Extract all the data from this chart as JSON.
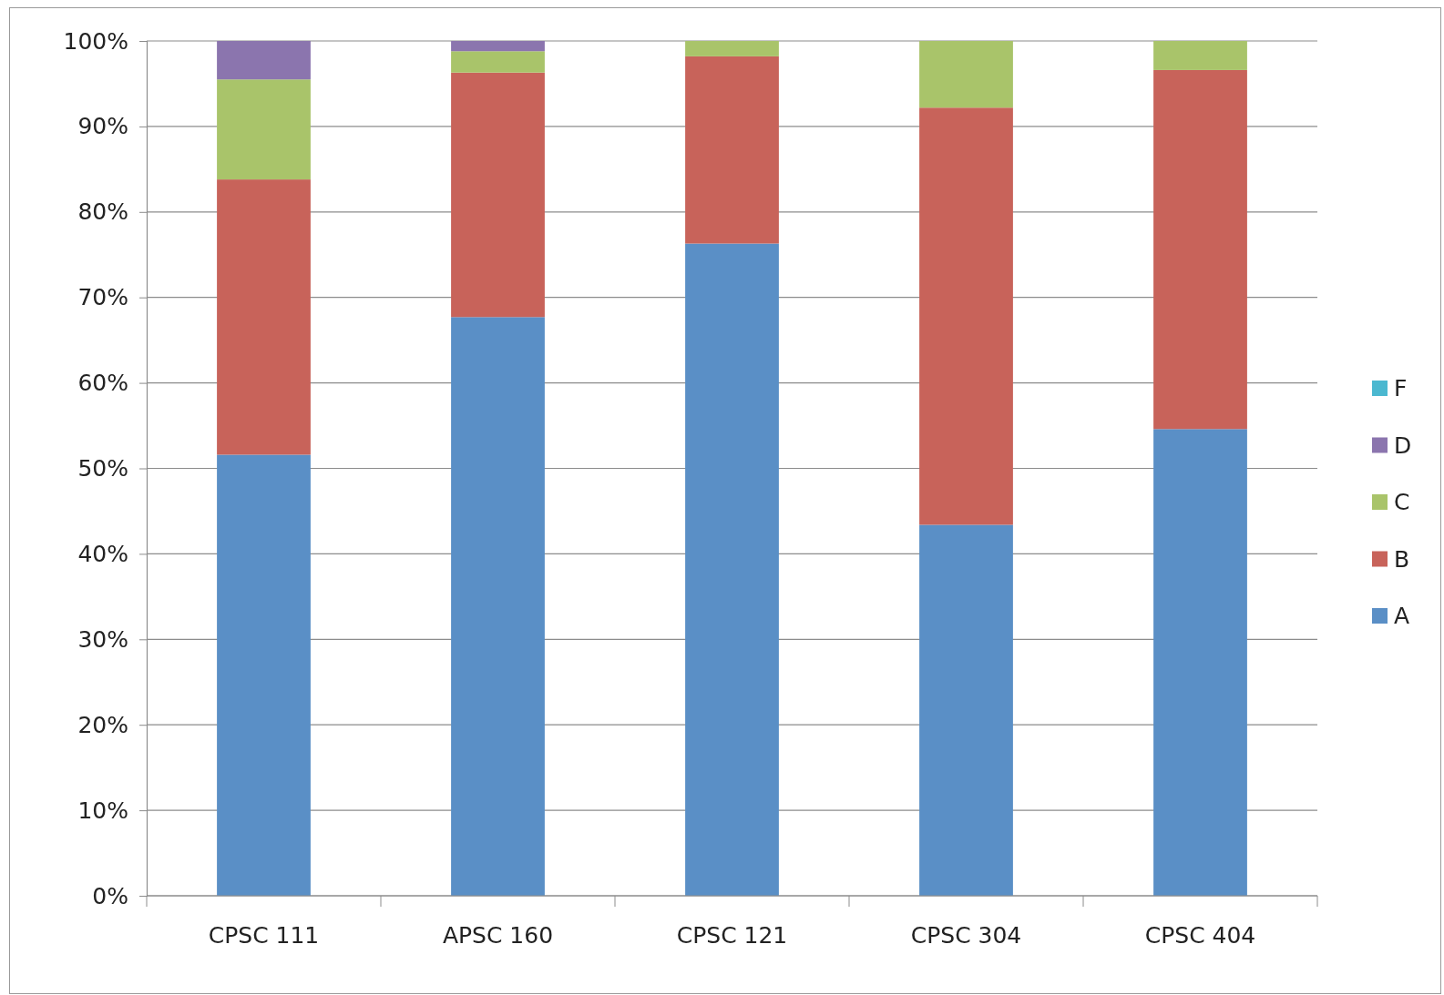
{
  "chart_data": {
    "type": "bar",
    "stacked": true,
    "categories": [
      "CPSC 111",
      "APSC 160",
      "CPSC 121",
      "CPSC 304",
      "CPSC 404"
    ],
    "series": [
      {
        "name": "A",
        "color": "#5a8fc6",
        "values": [
          51.6,
          67.7,
          76.3,
          43.4,
          54.6
        ]
      },
      {
        "name": "B",
        "color": "#c8635a",
        "values": [
          32.2,
          28.6,
          21.9,
          48.8,
          42.0
        ]
      },
      {
        "name": "C",
        "color": "#a9c46a",
        "values": [
          11.7,
          2.5,
          1.8,
          7.8,
          3.4
        ]
      },
      {
        "name": "D",
        "color": "#8b75ae",
        "values": [
          4.5,
          1.2,
          null,
          null,
          null
        ]
      },
      {
        "name": "F",
        "color": "#4bb8d0",
        "values": [
          null,
          null,
          null,
          null,
          null
        ]
      }
    ],
    "ylim": [
      0,
      100
    ],
    "yticks": [
      {
        "value": 0,
        "label": "0%"
      },
      {
        "value": 10,
        "label": "10%"
      },
      {
        "value": 20,
        "label": "20%"
      },
      {
        "value": 30,
        "label": "30%"
      },
      {
        "value": 40,
        "label": "40%"
      },
      {
        "value": 50,
        "label": "50%"
      },
      {
        "value": 60,
        "label": "60%"
      },
      {
        "value": 70,
        "label": "70%"
      },
      {
        "value": 80,
        "label": "80%"
      },
      {
        "value": 90,
        "label": "90%"
      },
      {
        "value": 100,
        "label": "100%"
      }
    ],
    "grid": "y",
    "legend": "right"
  }
}
